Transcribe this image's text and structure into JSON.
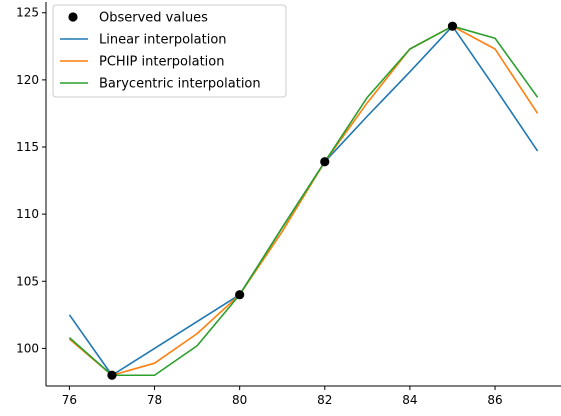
{
  "chart_data": {
    "type": "line",
    "title": "",
    "xlabel": "",
    "ylabel": "",
    "xlim": [
      75.45,
      87.55
    ],
    "ylim": [
      97.2,
      125.8
    ],
    "xticks": [
      76,
      78,
      80,
      82,
      84,
      86
    ],
    "yticks": [
      100,
      105,
      110,
      115,
      120,
      125
    ],
    "grid": false,
    "legend_position": "top-left",
    "series": [
      {
        "name": "Observed values",
        "kind": "scatter",
        "color": "#000000",
        "x": [
          77,
          80,
          82,
          85
        ],
        "y": [
          98.0,
          104.0,
          113.9,
          124.0
        ]
      },
      {
        "name": "Linear interpolation",
        "kind": "line",
        "color": "#1f77b4",
        "x": [
          76,
          77,
          78,
          79,
          80,
          81,
          82,
          83,
          84,
          85,
          86,
          87
        ],
        "y": [
          102.5,
          98.0,
          100.0,
          102.0,
          104.0,
          109.0,
          113.9,
          117.3,
          120.6,
          124.0,
          119.4,
          114.7
        ]
      },
      {
        "name": "PCHIP interpolation",
        "kind": "line",
        "color": "#ff7f0e",
        "x": [
          76,
          77,
          78,
          79,
          80,
          81,
          82,
          83,
          84,
          85,
          86,
          87
        ],
        "y": [
          100.7,
          98.0,
          98.9,
          101.1,
          104.0,
          108.7,
          113.9,
          118.3,
          122.3,
          124.0,
          122.3,
          117.5
        ]
      },
      {
        "name": "Barycentric interpolation",
        "kind": "line",
        "color": "#2ca02c",
        "x": [
          76,
          77,
          78,
          79,
          80,
          81,
          82,
          83,
          84,
          85,
          86,
          87
        ],
        "y": [
          100.8,
          98.0,
          98.0,
          100.2,
          104.0,
          109.0,
          113.9,
          118.7,
          122.3,
          124.0,
          123.1,
          118.7
        ]
      }
    ]
  }
}
